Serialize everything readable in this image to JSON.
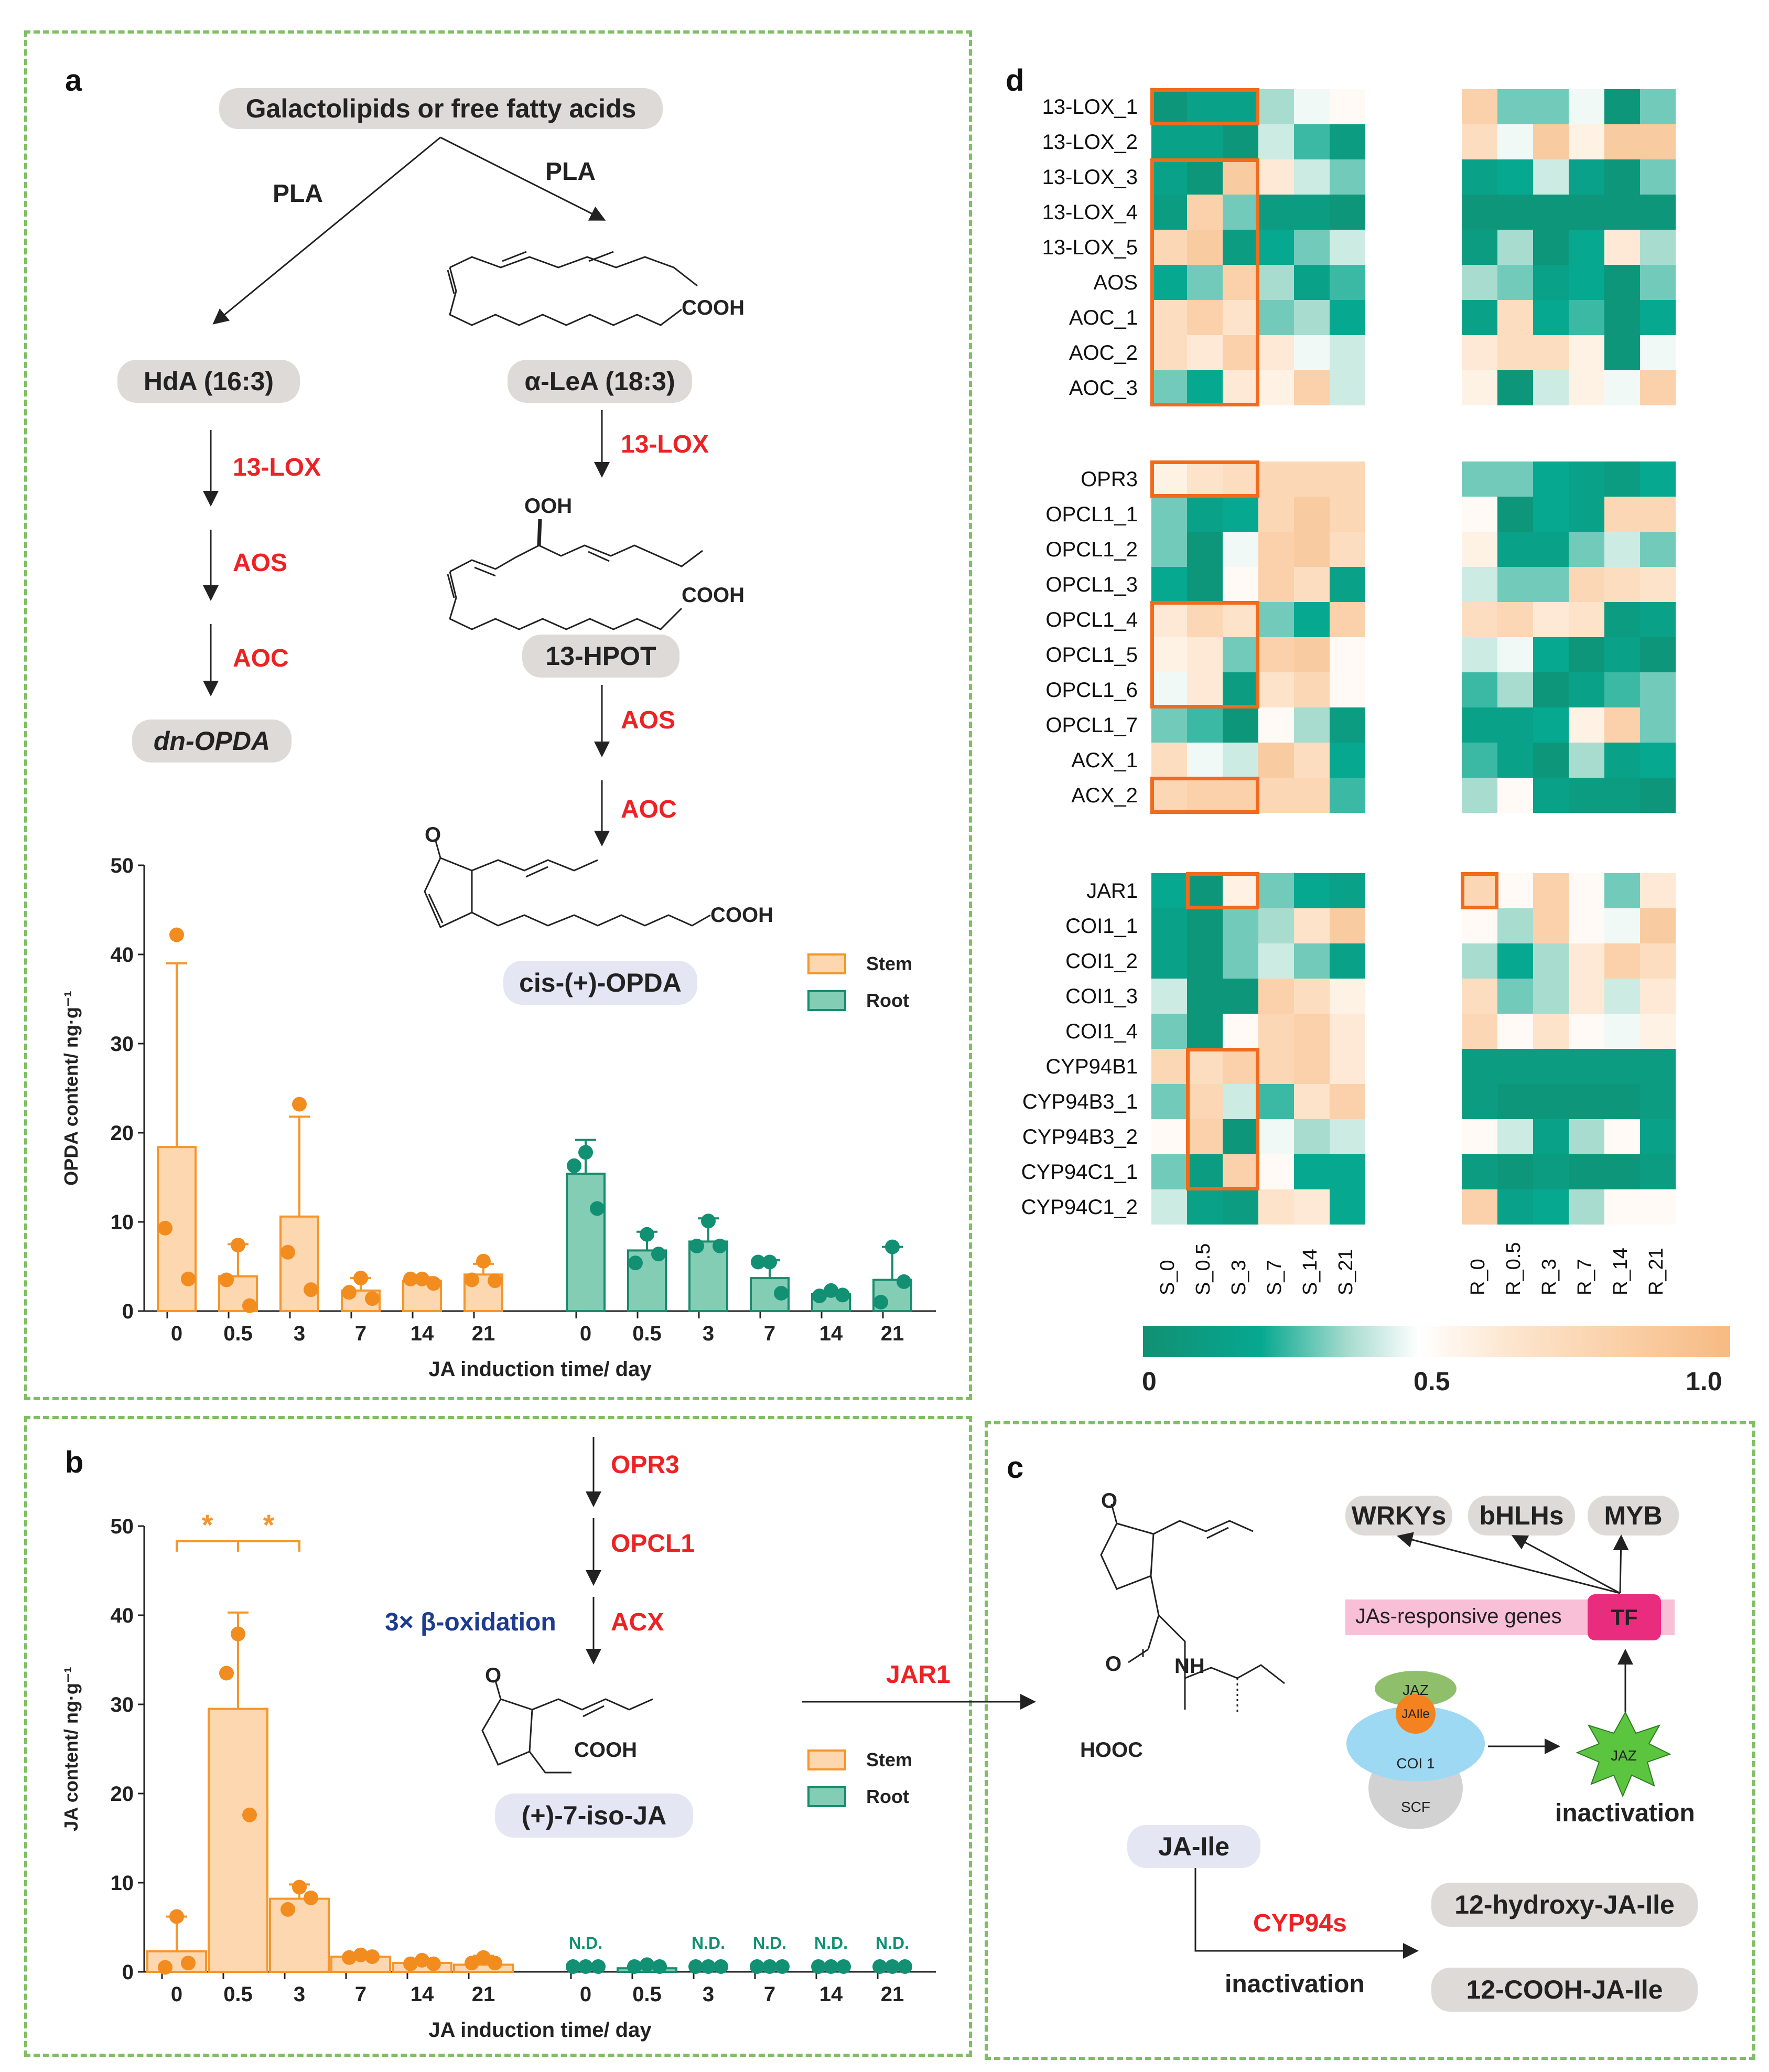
{
  "panel_labels": {
    "a": "a",
    "b": "b",
    "c": "c",
    "d": "d"
  },
  "panel_a": {
    "top": "Galactolipids or free fatty acids",
    "pla_left": "PLA",
    "pla_right": "PLA",
    "hda": "HdA (16:3)",
    "lea": "α-LeA (18:3)",
    "cooh": "COOH",
    "ooh": "OOH",
    "hpot": "13-HPOT",
    "dn_opda": "dn-OPDA",
    "cis_opda": "cis-(+)-OPDA",
    "keto": "O",
    "left_enzymes": [
      "13-LOX",
      "AOS",
      "AOC"
    ],
    "right_enzyme_1": "13-LOX",
    "right_enzymes_2": [
      "AOS",
      "AOC"
    ]
  },
  "panel_b": {
    "enzymes": [
      "OPR3",
      "OPCL1",
      "ACX"
    ],
    "beta_ox": "3× β-oxidation",
    "product": "(+)-7-iso-JA",
    "cooh": "COOH",
    "keto": "O",
    "jar1": "JAR1"
  },
  "panel_c": {
    "tfs": [
      "WRKYs",
      "bHLHs",
      "MYB"
    ],
    "genes_bar": "JAs-responsive genes",
    "tf": "TF",
    "jaz": "JAZ",
    "jaile": "JAIle",
    "coi1": "COI 1",
    "scf": "SCF",
    "jaz_star": "JAZ",
    "inactivation_right": "inactivation",
    "ja_ile": "JA-Ile",
    "cyp94s": "CYP94s",
    "inactivation_bottom": "inactivation",
    "hydroxy": "12-hydroxy-JA-Ile",
    "cooh_product": "12-COOH-JA-Ile",
    "nh": "NH",
    "hooc": "HOOC",
    "o1": "O",
    "o2": "O"
  },
  "colors": {
    "stem_fill": "#fcd7b0",
    "stem_edge": "#f5962a",
    "stem_dot": "#f28c1e",
    "root_fill": "#83cdb4",
    "root_edge": "#1a8c6d",
    "root_dot": "#119073",
    "enzyme": "#ed2224",
    "beta": "#1d3c8f",
    "frame": "#7fbf63",
    "box": "#f26a1b"
  },
  "heatmap": {
    "columns": [
      "S_0",
      "S_0.5",
      "S_3",
      "S_7",
      "S_14",
      "S_21",
      "R_0",
      "R_0.5",
      "R_3",
      "R_7",
      "R_14",
      "R_21"
    ],
    "colorbar_ticks": [
      "0",
      "0.5",
      "1.0"
    ],
    "blocks": [
      {
        "genes": [
          "13-LOX_1",
          "13-LOX_2",
          "13-LOX_3",
          "13-LOX_4",
          "13-LOX_5",
          "AOS",
          "AOC_1",
          "AOC_2",
          "AOC_3"
        ],
        "values": [
          [
            0.05,
            0.15,
            0.15,
            0.35,
            0.45,
            0.5,
            0.8,
            0.3,
            0.3,
            0.45,
            0.05,
            0.3
          ],
          [
            0.15,
            0.15,
            0.05,
            0.4,
            0.25,
            0.1,
            0.7,
            0.45,
            0.85,
            0.55,
            0.85,
            0.85
          ],
          [
            0.15,
            0.05,
            0.85,
            0.6,
            0.4,
            0.3,
            0.15,
            0.2,
            0.4,
            0.15,
            0.05,
            0.3
          ],
          [
            0.1,
            0.8,
            0.3,
            0.1,
            0.1,
            0.05,
            0.05,
            0.05,
            0.05,
            0.05,
            0.05,
            0.05
          ],
          [
            0.75,
            0.85,
            0.1,
            0.2,
            0.3,
            0.4,
            0.1,
            0.35,
            0.05,
            0.2,
            0.6,
            0.35
          ],
          [
            0.2,
            0.3,
            0.8,
            0.35,
            0.15,
            0.25,
            0.35,
            0.3,
            0.15,
            0.2,
            0.05,
            0.3
          ],
          [
            0.7,
            0.8,
            0.65,
            0.3,
            0.35,
            0.2,
            0.15,
            0.7,
            0.2,
            0.25,
            0.05,
            0.2
          ],
          [
            0.7,
            0.6,
            0.8,
            0.6,
            0.45,
            0.4,
            0.6,
            0.7,
            0.7,
            0.55,
            0.05,
            0.45
          ],
          [
            0.3,
            0.2,
            0.6,
            0.55,
            0.8,
            0.4,
            0.55,
            0.05,
            0.4,
            0.55,
            0.45,
            0.8
          ]
        ],
        "boxes": [
          {
            "r0": 0,
            "r1": 0,
            "c0": 0,
            "c1": 2
          },
          {
            "r0": 2,
            "r1": 8,
            "c0": 0,
            "c1": 2
          }
        ]
      },
      {
        "genes": [
          "OPR3",
          "OPCL1_1",
          "OPCL1_2",
          "OPCL1_3",
          "OPCL1_4",
          "OPCL1_5",
          "OPCL1_6",
          "OPCL1_7",
          "ACX_1",
          "ACX_2"
        ],
        "values": [
          [
            0.55,
            0.65,
            0.7,
            0.75,
            0.75,
            0.75,
            0.3,
            0.3,
            0.2,
            0.15,
            0.1,
            0.2
          ],
          [
            0.3,
            0.15,
            0.2,
            0.75,
            0.85,
            0.75,
            0.5,
            0.05,
            0.2,
            0.15,
            0.75,
            0.75
          ],
          [
            0.3,
            0.05,
            0.45,
            0.8,
            0.85,
            0.7,
            0.55,
            0.15,
            0.15,
            0.3,
            0.4,
            0.3
          ],
          [
            0.2,
            0.05,
            0.5,
            0.8,
            0.7,
            0.15,
            0.4,
            0.3,
            0.3,
            0.75,
            0.7,
            0.65
          ],
          [
            0.6,
            0.75,
            0.65,
            0.3,
            0.2,
            0.8,
            0.7,
            0.75,
            0.6,
            0.65,
            0.1,
            0.15
          ],
          [
            0.55,
            0.6,
            0.3,
            0.8,
            0.85,
            0.5,
            0.4,
            0.45,
            0.2,
            0.05,
            0.15,
            0.05
          ],
          [
            0.45,
            0.6,
            0.1,
            0.65,
            0.75,
            0.5,
            0.25,
            0.35,
            0.05,
            0.15,
            0.25,
            0.3
          ],
          [
            0.3,
            0.25,
            0.05,
            0.5,
            0.35,
            0.1,
            0.15,
            0.15,
            0.2,
            0.55,
            0.8,
            0.3
          ],
          [
            0.7,
            0.45,
            0.4,
            0.85,
            0.7,
            0.2,
            0.25,
            0.15,
            0.05,
            0.35,
            0.15,
            0.2
          ],
          [
            0.75,
            0.8,
            0.8,
            0.75,
            0.75,
            0.25,
            0.35,
            0.5,
            0.15,
            0.1,
            0.1,
            0.05
          ]
        ],
        "boxes": [
          {
            "r0": 0,
            "r1": 0,
            "c0": 0,
            "c1": 2
          },
          {
            "r0": 4,
            "r1": 6,
            "c0": 0,
            "c1": 2
          },
          {
            "r0": 9,
            "r1": 9,
            "c0": 0,
            "c1": 2
          }
        ]
      },
      {
        "genes": [
          "JAR1",
          "COI1_1",
          "COI1_2",
          "COI1_3",
          "COI1_4",
          "CYP94B1",
          "CYP94B3_1",
          "CYP94B3_2",
          "CYP94C1_1",
          "CYP94C1_2"
        ],
        "values": [
          [
            0.2,
            0.05,
            0.55,
            0.3,
            0.2,
            0.15,
            0.75,
            0.5,
            0.8,
            0.5,
            0.3,
            0.6
          ],
          [
            0.15,
            0.05,
            0.3,
            0.35,
            0.65,
            0.85,
            0.5,
            0.35,
            0.8,
            0.5,
            0.45,
            0.85
          ],
          [
            0.15,
            0.05,
            0.3,
            0.4,
            0.3,
            0.15,
            0.35,
            0.2,
            0.35,
            0.6,
            0.8,
            0.7
          ],
          [
            0.4,
            0.05,
            0.05,
            0.8,
            0.7,
            0.55,
            0.7,
            0.3,
            0.35,
            0.6,
            0.4,
            0.6
          ],
          [
            0.3,
            0.05,
            0.5,
            0.75,
            0.8,
            0.6,
            0.75,
            0.5,
            0.65,
            0.5,
            0.45,
            0.55
          ],
          [
            0.75,
            0.7,
            0.8,
            0.75,
            0.8,
            0.6,
            0.1,
            0.1,
            0.1,
            0.1,
            0.1,
            0.1
          ],
          [
            0.3,
            0.75,
            0.4,
            0.25,
            0.65,
            0.8,
            0.1,
            0.05,
            0.05,
            0.05,
            0.05,
            0.1
          ],
          [
            0.5,
            0.8,
            0.05,
            0.45,
            0.35,
            0.4,
            0.5,
            0.4,
            0.15,
            0.35,
            0.5,
            0.15
          ],
          [
            0.3,
            0.1,
            0.8,
            0.5,
            0.2,
            0.2,
            0.1,
            0.05,
            0.1,
            0.05,
            0.05,
            0.1
          ],
          [
            0.4,
            0.15,
            0.1,
            0.65,
            0.6,
            0.2,
            0.8,
            0.15,
            0.2,
            0.35,
            0.5,
            0.5
          ]
        ],
        "boxes": [
          {
            "r0": 0,
            "r1": 0,
            "c0": 1,
            "c1": 2
          },
          {
            "r0": 0,
            "r1": 0,
            "c0": 6,
            "c1": 6
          },
          {
            "r0": 5,
            "r1": 8,
            "c0": 1,
            "c1": 2
          }
        ]
      }
    ]
  },
  "chart_data": [
    {
      "type": "bar",
      "title": "",
      "xlabel": "JA induction time/ day",
      "ylabel": "OPDA content/ ng·g⁻¹",
      "ylim": [
        0,
        50
      ],
      "yticks": [
        "0",
        "10",
        "20",
        "30",
        "40",
        "50"
      ],
      "categories": [
        "0",
        "0.5",
        "3",
        "7",
        "14",
        "21"
      ],
      "legend": [
        "Stem",
        "Root"
      ],
      "series": [
        {
          "name": "Stem",
          "values": [
            18.4,
            3.9,
            10.6,
            2.3,
            3.4,
            4.1
          ],
          "errors": [
            20.6,
            3.6,
            11.2,
            1.4,
            0.4,
            1.2
          ],
          "points": [
            [
              42.2,
              9.3,
              3.6
            ],
            [
              7.4,
              3.5,
              0.6
            ],
            [
              23.2,
              6.6,
              2.4
            ],
            [
              3.7,
              2.1,
              1.4
            ],
            [
              3.6,
              3.6,
              3.1
            ],
            [
              5.6,
              3.5,
              3.4
            ]
          ]
        },
        {
          "name": "Root",
          "values": [
            15.4,
            6.8,
            7.8,
            3.7,
            1.9,
            3.5
          ],
          "errors": [
            3.8,
            2.1,
            2.6,
            2.0,
            0.4,
            3.7
          ],
          "points": [
            [
              17.8,
              16.3,
              11.5
            ],
            [
              8.6,
              5.4,
              6.4
            ],
            [
              10.1,
              7.3,
              7.3
            ],
            [
              5.5,
              5.5,
              2.0
            ],
            [
              2.3,
              1.7,
              1.8
            ],
            [
              7.2,
              1.0,
              3.3
            ]
          ]
        }
      ]
    },
    {
      "type": "bar",
      "title": "",
      "xlabel": "JA induction time/ day",
      "ylabel": "JA content/ ng·g⁻¹",
      "ylim": [
        0,
        50
      ],
      "yticks": [
        "0",
        "10",
        "20",
        "30",
        "40",
        "50"
      ],
      "categories": [
        "0",
        "0.5",
        "3",
        "7",
        "14",
        "21"
      ],
      "legend": [
        "Stem",
        "Root"
      ],
      "significance": "*",
      "series": [
        {
          "name": "Stem",
          "values": [
            2.3,
            29.5,
            8.2,
            1.7,
            1.0,
            0.8
          ],
          "errors": [
            3.9,
            10.8,
            1.6,
            0.3,
            0.4,
            1.0
          ],
          "points": [
            [
              6.2,
              0.5,
              0.4
            ],
            [
              37.9,
              33.5,
              17.6
            ],
            [
              9.5,
              7.0,
              8.3
            ],
            [
              1.9,
              1.6,
              1.7
            ],
            [
              1.3,
              0.9,
              0.9
            ],
            [
              1.6,
              0.4,
              0.4
            ]
          ]
        },
        {
          "name": "Root",
          "values": [
            0,
            0.4,
            0,
            0,
            0,
            0
          ],
          "errors": [
            0,
            0,
            0,
            0,
            0,
            0
          ],
          "points": [
            [
              0,
              0,
              0
            ],
            [
              0,
              0.8,
              0
            ],
            [
              0,
              0,
              0
            ],
            [
              0,
              0,
              0
            ],
            [
              0,
              0,
              0
            ],
            [
              0,
              0,
              0
            ]
          ],
          "labels": [
            "N.D.",
            "",
            "N.D.",
            "N.D.",
            "N.D.",
            "N.D."
          ]
        }
      ]
    }
  ]
}
